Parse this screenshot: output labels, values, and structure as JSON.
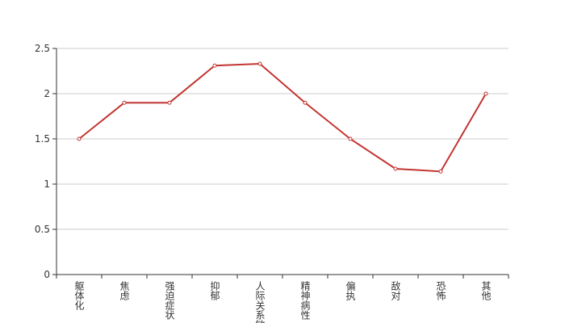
{
  "chart_data": {
    "type": "line",
    "categories": [
      "躯体化",
      "焦虑",
      "强迫症状",
      "抑郁",
      "人际关系敏感",
      "精神病性",
      "偏执",
      "敌对",
      "恐怖",
      "其他"
    ],
    "values": [
      1.5,
      1.9,
      1.9,
      2.31,
      2.33,
      1.9,
      1.5,
      1.17,
      1.14,
      2.0
    ],
    "color": "#c23531",
    "ylim": [
      0,
      2.5
    ],
    "yticks": [
      0,
      0.5,
      1,
      1.5,
      2,
      2.5
    ],
    "grid": true
  }
}
